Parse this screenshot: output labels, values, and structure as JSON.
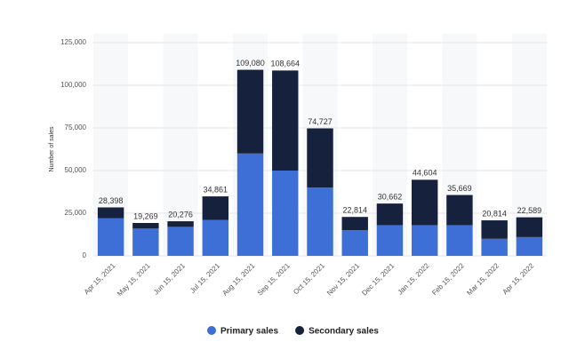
{
  "chart_data": {
    "type": "stacked_bar",
    "y_label": "Number of sales",
    "categories": [
      "Apr 15, 2021",
      "May 15, 2021",
      "Jun 15, 2021",
      "Jul 15, 2021",
      "Aug 15, 2021",
      "Sep 15, 2021",
      "Oct 15, 2021",
      "Nov 15, 2021",
      "Dec 15, 2021",
      "Jan 15, 2022",
      "Feb 15, 2022",
      "Mar 15, 2022",
      "Apr 15, 2022"
    ],
    "series": [
      {
        "name": "Primary sales",
        "color": "#3d6fd6",
        "values": [
          22000,
          16000,
          17000,
          21000,
          60000,
          50000,
          40000,
          15000,
          18000,
          18000,
          18000,
          10000,
          11000
        ]
      },
      {
        "name": "Secondary sales",
        "color": "#16223d",
        "values": [
          6398,
          3269,
          3276,
          13861,
          49080,
          58664,
          34727,
          7814,
          12662,
          26604,
          17669,
          10814,
          11589
        ]
      }
    ],
    "totals": {
      "values": [
        28398,
        19269,
        20276,
        34861,
        109080,
        108664,
        74727,
        22814,
        30662,
        44604,
        35669,
        20814,
        22589
      ],
      "value_labels": [
        "28,398",
        "19,269",
        "20,276",
        "34,861",
        "109,080",
        "108,664",
        "74,727",
        "22,814",
        "30,662",
        "44,604",
        "35,669",
        "20,814",
        "22,589"
      ]
    },
    "ylim": [
      0,
      125000
    ],
    "yticks": [
      0,
      {
        "value": 25000,
        "label": "25,000"
      },
      {
        "value": 50000,
        "label": "50,000"
      },
      {
        "value": 75000,
        "label": "75,000"
      },
      {
        "value": 100000,
        "label": "100,000"
      },
      {
        "value": 125000,
        "label": "125,000"
      }
    ],
    "grid": true,
    "legend": "bottom"
  }
}
